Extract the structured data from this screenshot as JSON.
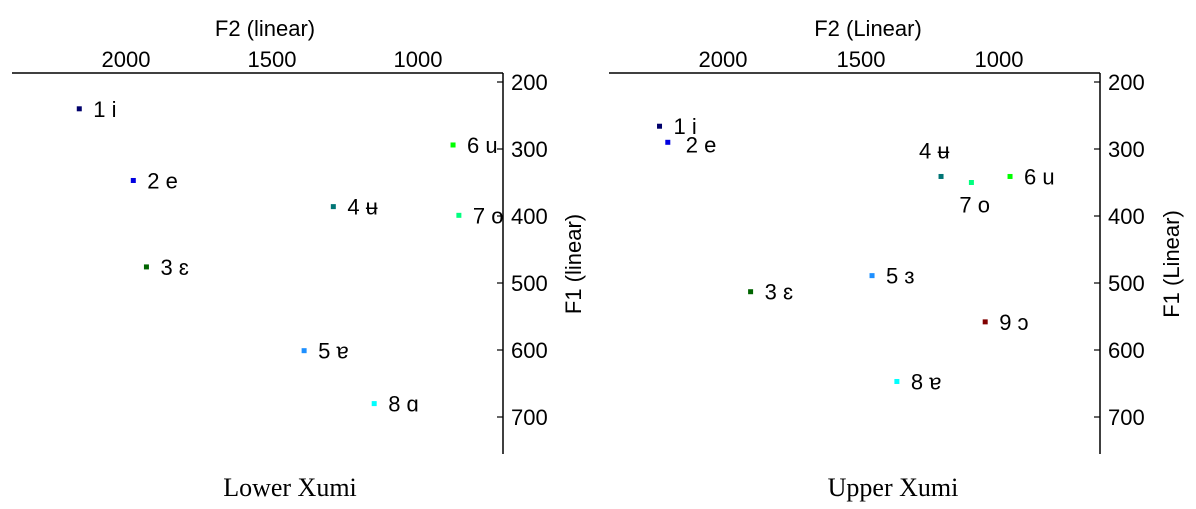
{
  "chart_data": [
    {
      "type": "scatter",
      "caption": "Lower Xumi",
      "xlabel": "F2 (linear)",
      "ylabel": "F1 (linear)",
      "xlim": [
        2500,
        750
      ],
      "ylim": [
        200,
        750
      ],
      "x_ticks": [
        2000,
        1500,
        1000
      ],
      "y_ticks": [
        200,
        300,
        400,
        500,
        600,
        700
      ],
      "x_axis_position": "top",
      "y_axis_position": "right",
      "grid": false,
      "points": [
        {
          "label": "1 i",
          "x": 2160,
          "y": 240,
          "color": "#00006b"
        },
        {
          "label": "2 e",
          "x": 1975,
          "y": 347,
          "color": "#0000e0"
        },
        {
          "label": "3 ɛ",
          "x": 1930,
          "y": 476,
          "color": "#006400"
        },
        {
          "label": "4 ʉ",
          "x": 1290,
          "y": 386,
          "color": "#007575"
        },
        {
          "label": "5 ɐ",
          "x": 1390,
          "y": 601,
          "color": "#1e90ff"
        },
        {
          "label": "6 u",
          "x": 880,
          "y": 294,
          "color": "#00ff00"
        },
        {
          "label": "7 o",
          "x": 860,
          "y": 399,
          "color": "#00ff7f"
        },
        {
          "label": "8 ɑ",
          "x": 1150,
          "y": 680,
          "color": "#00ffff"
        }
      ]
    },
    {
      "type": "scatter",
      "caption": "Upper Xumi",
      "xlabel": "F2 (Linear)",
      "ylabel": "F1 (Linear)",
      "xlim": [
        2500,
        750
      ],
      "ylim": [
        200,
        750
      ],
      "x_ticks": [
        2000,
        1500,
        1000
      ],
      "y_ticks": [
        200,
        300,
        400,
        500,
        600,
        700
      ],
      "x_axis_position": "top",
      "y_axis_position": "right",
      "grid": false,
      "points": [
        {
          "label": "1 i",
          "x": 2230,
          "y": 266,
          "color": "#00006b"
        },
        {
          "label": "2 e",
          "x": 2200,
          "y": 290,
          "color": "#0000e0"
        },
        {
          "label": "3 ɛ",
          "x": 1900,
          "y": 513,
          "color": "#006400"
        },
        {
          "label": "4 ʉ",
          "x": 1210,
          "y": 341,
          "color": "#007575"
        },
        {
          "label": "5 ɜ",
          "x": 1460,
          "y": 489,
          "color": "#1e90ff"
        },
        {
          "label": "6 u",
          "x": 960,
          "y": 341,
          "color": "#00ff00"
        },
        {
          "label": "7 o",
          "x": 1100,
          "y": 350,
          "color": "#00ff7f"
        },
        {
          "label": "8 ɐ",
          "x": 1370,
          "y": 647,
          "color": "#00ffff"
        },
        {
          "label": "9 ɔ",
          "x": 1050,
          "y": 558,
          "color": "#800000"
        }
      ]
    }
  ]
}
